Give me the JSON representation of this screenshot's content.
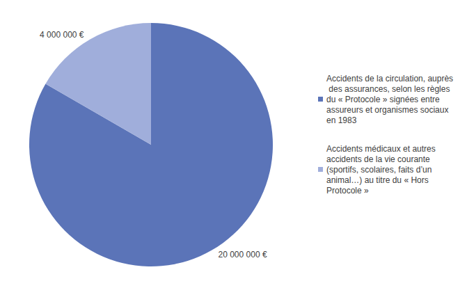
{
  "chart_data": {
    "type": "pie",
    "categories": [
      "Accidents de la circulation, auprès des assurances, selon les règles du « Protocole » signées entre assureurs et organismes sociaux en 1983",
      "Accidents médicaux et autres accidents de la vie courante (sportifs, scolaires, faits d’un animal…) au titre du « Hors Protocole »"
    ],
    "values": [
      20000000,
      4000000
    ],
    "value_labels": [
      "20 000 000 €",
      "4 000 000 €"
    ],
    "colors": [
      "#5b74b8",
      "#a0aedb"
    ],
    "legend": "right",
    "data_labels": true
  }
}
